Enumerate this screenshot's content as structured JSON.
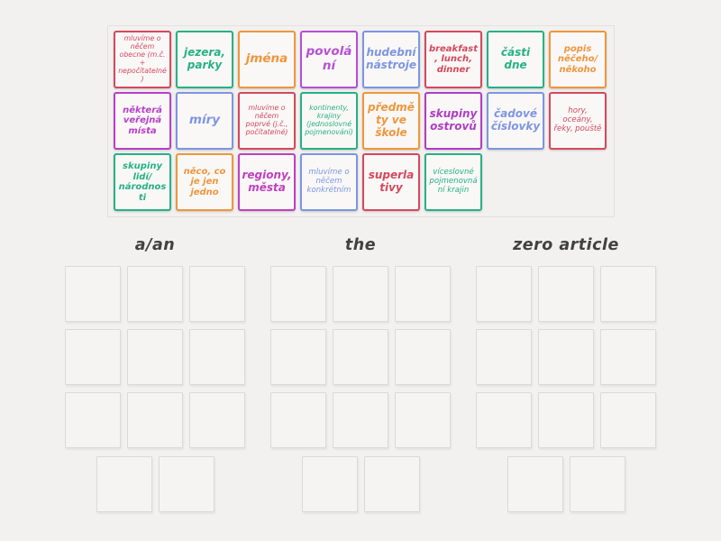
{
  "page": {
    "background_color": "#f2f1f0"
  },
  "pool": {
    "rows": [
      [
        {
          "label": "mluvíme o něčem obecne (m.č. + nepočítatelné)",
          "color": "#d5485d"
        },
        {
          "label": "jezera, parky",
          "color": "#27b185"
        },
        {
          "label": "jména",
          "color": "#f0963b"
        },
        {
          "label": "povolání",
          "color": "#b64fd4"
        },
        {
          "label": "hudební nástroje",
          "color": "#7e95e2"
        },
        {
          "label": "breakfast, lunch, dinner",
          "color": "#d5485d"
        },
        {
          "label": "části dne",
          "color": "#27b185"
        },
        {
          "label": "popis něčeho/ někoho",
          "color": "#f0963b"
        }
      ],
      [
        {
          "label": "některá veřejná místa",
          "color": "#b73fc9"
        },
        {
          "label": "míry",
          "color": "#7e95e2"
        },
        {
          "label": "mluvíme o něčem poprvé (j.č., počítatelné)",
          "color": "#d5485d"
        },
        {
          "label": "kontinenty, krajiny (jednoslovné pojmenování)",
          "color": "#27b185"
        },
        {
          "label": "předměty ve škole",
          "color": "#f0963b"
        },
        {
          "label": "skupiny ostrovů",
          "color": "#b03cc6"
        },
        {
          "label": "čadové číslovky",
          "color": "#7e95e2"
        },
        {
          "label": "hory, oceány, řeky, pouště",
          "color": "#d5485d"
        }
      ],
      [
        {
          "label": "skupiny lidí/ národnosti",
          "color": "#27b185"
        },
        {
          "label": "něco, co je jen jedno",
          "color": "#f0963b"
        },
        {
          "label": "regiony, města",
          "color": "#c23ec0"
        },
        {
          "label": "mluvíme o něčem konkrétním",
          "color": "#7e95e2"
        },
        {
          "label": "superlativy",
          "color": "#d5485d"
        },
        {
          "label": "víceslovné pojmenovnání krajin",
          "color": "#27b185"
        }
      ]
    ]
  },
  "categories": [
    {
      "label": "a/an",
      "grid_slots": 9,
      "extra_slots": 2
    },
    {
      "label": "the",
      "grid_slots": 9,
      "extra_slots": 2
    },
    {
      "label": "zero article",
      "grid_slots": 9,
      "extra_slots": 2
    }
  ]
}
